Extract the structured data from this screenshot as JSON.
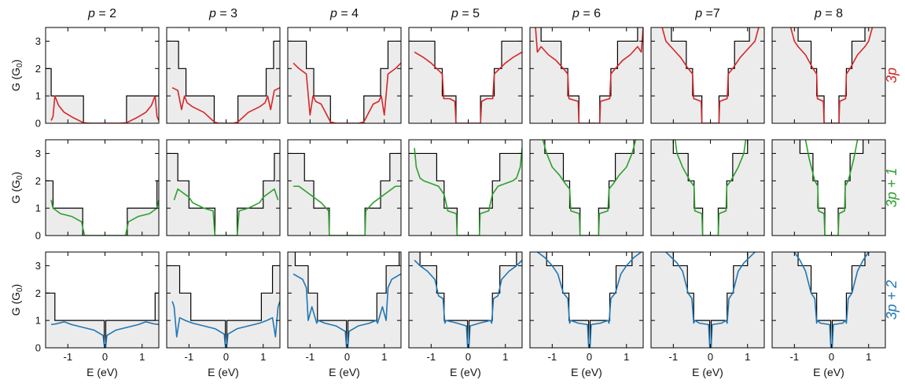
{
  "chart_data": {
    "type": "line",
    "columns": [
      {
        "label_var": "p",
        "label_eq": " = 2"
      },
      {
        "label_var": "p",
        "label_eq": " = 3"
      },
      {
        "label_var": "p",
        "label_eq": " = 4"
      },
      {
        "label_var": "p",
        "label_eq": " = 5"
      },
      {
        "label_var": "p",
        "label_eq": " = 6"
      },
      {
        "label_var": "p",
        "label_eq": " =7"
      },
      {
        "label_var": "p",
        "label_eq": " = 8"
      }
    ],
    "rows": [
      {
        "label": "3p",
        "color": "#d62728"
      },
      {
        "label": "3p + 1",
        "color": "#2ca02c"
      },
      {
        "label": "3p + 2",
        "color": "#1f77b4"
      }
    ],
    "ylabel": "G (G",
    "ylabel_sub": "0",
    "ylabel_close": ")",
    "xlabel": "E (eV)",
    "xlim": [
      -1.6,
      1.45
    ],
    "ylim": [
      0,
      3.5
    ],
    "xticks": [
      "-1",
      "0",
      "1"
    ],
    "xtick_values": [
      -1,
      0,
      1
    ],
    "yticks": [
      "0",
      "1",
      "2",
      "3"
    ],
    "ytick_values": [
      0,
      1,
      2,
      3
    ],
    "step_color": "#000000",
    "fill_color": "#ececec",
    "panels": [
      [
        {
          "gap": 0.58,
          "steps": [
            [
              0.58,
              1
            ],
            [
              1.45,
              2
            ]
          ],
          "curve": {
            "e": [
              0,
              0.4,
              0.58,
              0.85,
              1.1,
              1.25,
              1.35,
              1.4,
              1.45
            ],
            "g": [
              0,
              0,
              0.02,
              0.2,
              0.4,
              0.65,
              1.0,
              0.25,
              0.1
            ]
          }
        },
        {
          "gap": 0.32,
          "steps": [
            [
              0.32,
              1
            ],
            [
              1.08,
              2
            ],
            [
              1.28,
              3
            ]
          ],
          "curve": {
            "e": [
              0,
              0.2,
              0.32,
              0.6,
              0.9,
              1.05,
              1.12,
              1.2,
              1.3,
              1.45
            ],
            "g": [
              0,
              0,
              0.05,
              0.4,
              0.6,
              0.75,
              1.0,
              0.5,
              1.2,
              1.3
            ]
          }
        },
        {
          "gap": 0.45,
          "steps": [
            [
              0.45,
              1
            ],
            [
              0.9,
              2
            ],
            [
              1.1,
              3
            ]
          ],
          "curve": {
            "e": [
              0,
              0.3,
              0.45,
              0.7,
              0.85,
              0.92,
              1.0,
              1.1,
              1.3,
              1.45
            ],
            "g": [
              0,
              0,
              0.05,
              0.7,
              0.8,
              1.0,
              0.3,
              1.8,
              2.0,
              2.2
            ]
          }
        },
        {
          "gap": 0.33,
          "steps": [
            [
              0.33,
              1
            ],
            [
              0.7,
              2
            ],
            [
              0.9,
              3
            ]
          ],
          "curve": {
            "e": [
              0,
              0.33,
              0.36,
              0.5,
              0.66,
              0.7,
              0.85,
              1.0,
              1.2,
              1.45
            ],
            "g": [
              0,
              0,
              0.8,
              0.9,
              0.9,
              1.8,
              2.0,
              2.2,
              2.4,
              2.6
            ]
          }
        },
        {
          "gap": 0.28,
          "steps": [
            [
              0.28,
              1
            ],
            [
              0.58,
              2
            ],
            [
              0.76,
              3
            ],
            [
              1.3,
              4
            ]
          ],
          "curve": {
            "e": [
              0,
              0.28,
              0.3,
              0.55,
              0.58,
              0.7,
              0.9,
              1.1,
              1.3,
              1.4,
              1.45
            ],
            "g": [
              0,
              0,
              0.8,
              0.9,
              1.8,
              2.0,
              2.3,
              2.5,
              2.8,
              2.6,
              3.5
            ]
          }
        },
        {
          "gap": 0.23,
          "steps": [
            [
              0.23,
              1
            ],
            [
              0.48,
              2
            ],
            [
              0.65,
              3
            ],
            [
              1.05,
              4
            ]
          ],
          "curve": {
            "e": [
              0,
              0.23,
              0.25,
              0.45,
              0.48,
              0.6,
              0.8,
              1.0,
              1.2,
              1.3
            ],
            "g": [
              0,
              0,
              0.8,
              0.9,
              1.8,
              2.0,
              2.4,
              2.7,
              3.0,
              3.5
            ]
          }
        },
        {
          "gap": 0.2,
          "steps": [
            [
              0.2,
              1
            ],
            [
              0.4,
              2
            ],
            [
              0.55,
              3
            ],
            [
              0.9,
              4
            ]
          ],
          "curve": {
            "e": [
              0,
              0.2,
              0.22,
              0.38,
              0.4,
              0.5,
              0.7,
              0.9,
              1.0,
              1.1
            ],
            "g": [
              0,
              0,
              0.8,
              0.9,
              1.8,
              2.0,
              2.5,
              2.8,
              3.0,
              3.5
            ]
          }
        }
      ],
      [
        {
          "gap": 0.6,
          "steps": [
            [
              0.6,
              1
            ],
            [
              1.4,
              2
            ]
          ],
          "curve": {
            "e": [
              0,
              0.55,
              0.6,
              0.63,
              0.9,
              1.2,
              1.4,
              1.45
            ],
            "g": [
              0,
              0,
              0.3,
              0.5,
              0.7,
              0.8,
              1.0,
              1.3
            ]
          }
        },
        {
          "gap": 0.3,
          "steps": [
            [
              0.3,
              1
            ],
            [
              1.0,
              2
            ],
            [
              1.3,
              3
            ]
          ],
          "curve": {
            "e": [
              0,
              0.3,
              0.35,
              0.6,
              0.9,
              1.0,
              1.2,
              1.3,
              1.4
            ],
            "g": [
              0,
              0,
              0.9,
              1.0,
              1.2,
              1.4,
              1.6,
              1.7,
              1.3
            ]
          }
        },
        {
          "gap": 0.48,
          "steps": [
            [
              0.48,
              1
            ],
            [
              0.9,
              2
            ],
            [
              1.15,
              3
            ]
          ],
          "curve": {
            "e": [
              0,
              0.48,
              0.5,
              0.7,
              0.9,
              1.1,
              1.3,
              1.45
            ],
            "g": [
              0,
              0,
              0.9,
              1.2,
              1.4,
              1.6,
              1.8,
              1.8
            ]
          }
        },
        {
          "gap": 0.3,
          "steps": [
            [
              0.3,
              1
            ],
            [
              0.65,
              2
            ],
            [
              0.85,
              3
            ]
          ],
          "curve": {
            "e": [
              0,
              0.3,
              0.32,
              0.55,
              0.65,
              0.8,
              1.0,
              1.2,
              1.3,
              1.4,
              1.45
            ],
            "g": [
              0,
              0,
              0.8,
              0.9,
              1.5,
              1.8,
              1.9,
              2.0,
              2.1,
              2.5,
              3.2
            ]
          }
        },
        {
          "gap": 0.25,
          "steps": [
            [
              0.25,
              1
            ],
            [
              0.53,
              2
            ],
            [
              0.7,
              3
            ],
            [
              1.2,
              4
            ]
          ],
          "curve": {
            "e": [
              0,
              0.25,
              0.27,
              0.5,
              0.53,
              0.65,
              0.8,
              1.0,
              1.15,
              1.25
            ],
            "g": [
              0,
              0,
              0.8,
              0.9,
              1.7,
              1.9,
              2.2,
              2.5,
              3.0,
              3.5
            ]
          }
        },
        {
          "gap": 0.21,
          "steps": [
            [
              0.21,
              1
            ],
            [
              0.44,
              2
            ],
            [
              0.6,
              3
            ],
            [
              1.0,
              4
            ]
          ],
          "curve": {
            "e": [
              0,
              0.21,
              0.23,
              0.42,
              0.44,
              0.55,
              0.75,
              0.9,
              0.95
            ],
            "g": [
              0,
              0,
              0.8,
              0.9,
              1.8,
              2.0,
              2.5,
              3.0,
              3.5
            ]
          }
        },
        {
          "gap": 0.18,
          "steps": [
            [
              0.18,
              1
            ],
            [
              0.37,
              2
            ],
            [
              0.5,
              3
            ],
            [
              0.85,
              4
            ]
          ],
          "curve": {
            "e": [
              0,
              0.18,
              0.2,
              0.35,
              0.37,
              0.45,
              0.6,
              0.7
            ],
            "g": [
              0,
              0,
              0.8,
              0.9,
              1.8,
              2.0,
              2.8,
              3.5
            ]
          }
        }
      ],
      [
        {
          "gap": 0,
          "steps": [
            [
              0.02,
              1
            ],
            [
              1.35,
              2
            ]
          ],
          "curve": {
            "e": [
              0,
              0.02,
              0.05,
              0.3,
              0.6,
              0.9,
              1.1,
              1.3,
              1.45
            ],
            "g": [
              0,
              0.05,
              0.45,
              0.65,
              0.75,
              0.85,
              0.95,
              0.88,
              0.85
            ]
          }
        },
        {
          "gap": 0,
          "steps": [
            [
              0.02,
              1
            ],
            [
              0.95,
              2
            ],
            [
              1.25,
              3
            ]
          ],
          "curve": {
            "e": [
              0,
              0.02,
              0.05,
              0.3,
              0.6,
              0.9,
              1.1,
              1.25,
              1.33,
              1.4,
              1.45
            ],
            "g": [
              0,
              0.05,
              0.5,
              0.7,
              0.8,
              0.9,
              1.0,
              1.1,
              0.4,
              1.5,
              1.7
            ]
          }
        },
        {
          "gap": 0,
          "steps": [
            [
              0.02,
              1
            ],
            [
              0.8,
              2
            ],
            [
              1.05,
              3
            ],
            [
              1.4,
              4
            ]
          ],
          "curve": {
            "e": [
              0,
              0.02,
              0.05,
              0.3,
              0.6,
              0.78,
              0.82,
              0.95,
              1.05,
              1.1,
              1.2,
              1.45
            ],
            "g": [
              0,
              0.05,
              0.6,
              0.8,
              0.9,
              1.0,
              0.9,
              1.5,
              1.0,
              2.2,
              2.5,
              2.7
            ]
          }
        },
        {
          "gap": 0,
          "steps": [
            [
              0.02,
              1
            ],
            [
              0.65,
              2
            ],
            [
              0.85,
              3
            ],
            [
              1.3,
              4
            ]
          ],
          "curve": {
            "e": [
              0,
              0.02,
              0.05,
              0.3,
              0.6,
              0.63,
              0.68,
              0.8,
              0.9,
              1.1,
              1.3,
              1.45
            ],
            "g": [
              0,
              0.05,
              0.8,
              0.9,
              1.0,
              0.9,
              1.8,
              1.9,
              2.5,
              2.8,
              3.0,
              3.2
            ]
          }
        },
        {
          "gap": 0,
          "steps": [
            [
              0.02,
              1
            ],
            [
              0.55,
              2
            ],
            [
              0.72,
              3
            ],
            [
              1.15,
              4
            ]
          ],
          "curve": {
            "e": [
              0,
              0.02,
              0.05,
              0.3,
              0.5,
              0.53,
              0.58,
              0.7,
              0.85,
              1.0,
              1.2,
              1.4
            ],
            "g": [
              0,
              0.05,
              0.85,
              0.9,
              1.0,
              0.9,
              1.8,
              2.0,
              2.7,
              3.0,
              3.3,
              3.5
            ]
          }
        },
        {
          "gap": 0,
          "steps": [
            [
              0.02,
              1
            ],
            [
              0.45,
              2
            ],
            [
              0.62,
              3
            ],
            [
              1.0,
              4
            ]
          ],
          "curve": {
            "e": [
              0,
              0.02,
              0.05,
              0.3,
              0.42,
              0.45,
              0.5,
              0.6,
              0.75,
              0.9,
              1.05,
              1.2
            ],
            "g": [
              0,
              0.05,
              0.85,
              0.9,
              1.0,
              0.9,
              1.8,
              2.0,
              2.8,
              3.1,
              3.3,
              3.5
            ]
          }
        },
        {
          "gap": 0,
          "steps": [
            [
              0.02,
              1
            ],
            [
              0.4,
              2
            ],
            [
              0.55,
              3
            ],
            [
              0.9,
              4
            ]
          ],
          "curve": {
            "e": [
              0,
              0.02,
              0.05,
              0.3,
              0.38,
              0.4,
              0.45,
              0.55,
              0.7,
              0.85,
              1.0
            ],
            "g": [
              0,
              0.05,
              0.85,
              0.9,
              1.0,
              0.9,
              1.8,
              2.0,
              2.8,
              3.2,
              3.5
            ]
          }
        }
      ]
    ]
  }
}
